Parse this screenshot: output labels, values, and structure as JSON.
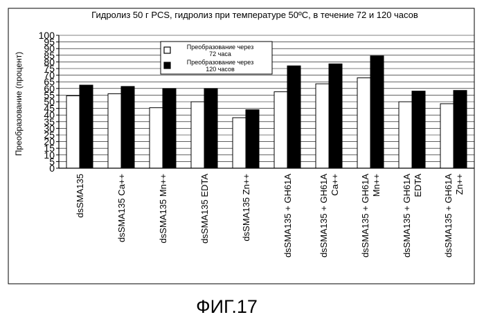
{
  "chart_data": {
    "type": "bar",
    "title": "Гидролиз 50 г PCS, гидролиз при температуре 50ºC, в течение 72 и 120 часов",
    "ylabel": "Преобразование (процент)",
    "xlabel": "",
    "ylim": [
      0,
      100
    ],
    "yticks": [
      0,
      5,
      10,
      15,
      20,
      25,
      30,
      35,
      40,
      45,
      50,
      55,
      60,
      65,
      70,
      75,
      80,
      85,
      90,
      95,
      100
    ],
    "grid": true,
    "legend_position": "top-center",
    "categories": [
      [
        "dsSMA135"
      ],
      [
        "dsSMA135 Ca++"
      ],
      [
        "dsSMA135 Mn++"
      ],
      [
        "dsSMA135 EDTA"
      ],
      [
        "dsSMA135 Zn++"
      ],
      [
        "dsSMA135 + GH61A"
      ],
      [
        "dsSMA135 + GH61A",
        "Ca++"
      ],
      [
        "dsSMA135 + GH61A",
        "Mn++"
      ],
      [
        "dsSMA135 + GH61A",
        "EDTA"
      ],
      [
        "dsSMA135 + GH61A",
        "Zn++"
      ]
    ],
    "series": [
      {
        "name": [
          "Преобразование через",
          "72 часа"
        ],
        "color": "#ffffff",
        "values": [
          54.5,
          56,
          45.5,
          50,
          38,
          57.5,
          63.5,
          68,
          50,
          48.5
        ]
      },
      {
        "name": [
          "Преобразование через",
          "120 часов"
        ],
        "color": "#000000",
        "values": [
          62.5,
          61.5,
          60,
          60,
          44,
          77,
          78.5,
          84.5,
          58,
          58.5
        ]
      }
    ]
  },
  "caption": "ФИГ.17"
}
